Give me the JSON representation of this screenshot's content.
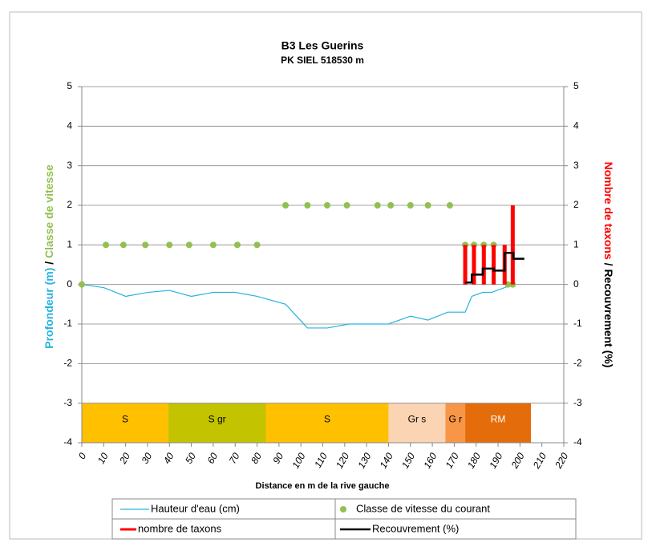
{
  "chart_data": {
    "type": "combo",
    "title": "B3 Les Guerins",
    "subtitle": "PK SIEL 518530 m",
    "xlabel": "Distance en m de la rive gauche",
    "ylabel": [
      {
        "text": "Profondeur (m)",
        "color": "#27b3e0"
      },
      {
        "text": "/",
        "color": "#000000"
      },
      {
        "text": "Classe de vitesse",
        "color": "#92c050"
      }
    ],
    "y2label": [
      {
        "text": "Nombre de taxons",
        "color": "#ff0000"
      },
      {
        "text": "/",
        "color": "#000000"
      },
      {
        "text": "Recouvrement (%)",
        "color": "#000000"
      }
    ],
    "xlim": [
      0,
      220
    ],
    "xticks": [
      0,
      10,
      20,
      30,
      40,
      50,
      60,
      70,
      80,
      90,
      100,
      110,
      120,
      130,
      140,
      150,
      160,
      170,
      180,
      190,
      200,
      210,
      220
    ],
    "ylim": [
      -4,
      5
    ],
    "yticks": [
      -4,
      -3,
      -2,
      -1,
      0,
      1,
      2,
      3,
      4,
      5
    ],
    "y2lim": [
      -4,
      5
    ],
    "y2ticks": [
      -4,
      -3,
      -2,
      -1,
      0,
      1,
      2,
      3,
      4,
      5
    ],
    "grid": true,
    "series": [
      {
        "name": "Hauteur d'eau (cm)",
        "type": "line",
        "color": "#27b3e0",
        "x": [
          0,
          10,
          20,
          30,
          40,
          50,
          60,
          70,
          80,
          93,
          103,
          112,
          122,
          131,
          140,
          150,
          158,
          167,
          175,
          178,
          183,
          187,
          192,
          197
        ],
        "values": [
          0,
          -0.08,
          -0.3,
          -0.2,
          -0.15,
          -0.3,
          -0.2,
          -0.2,
          -0.3,
          -0.5,
          -1.1,
          -1.1,
          -1.0,
          -1.0,
          -1.0,
          -0.8,
          -0.9,
          -0.7,
          -0.7,
          -0.3,
          -0.2,
          -0.2,
          -0.1,
          0
        ]
      },
      {
        "name": "Classe de vitesse du courant",
        "type": "scatter",
        "color": "#92c050",
        "x": [
          0,
          11,
          19,
          29,
          40,
          49,
          60,
          71,
          80,
          93,
          103,
          112,
          121,
          135,
          141,
          150,
          158,
          168,
          175,
          179,
          183.5,
          188,
          194.5,
          196.7
        ],
        "values": [
          0,
          1,
          1,
          1,
          1,
          1,
          1,
          1,
          1,
          2,
          2,
          2,
          2,
          2,
          2,
          2,
          2,
          2,
          1,
          1,
          1,
          1,
          0,
          0
        ]
      },
      {
        "name": "nombre de taxons",
        "type": "bar",
        "color": "#ff0000",
        "axis": "y2",
        "x": [
          175,
          179,
          183.5,
          188,
          193,
          196.7
        ],
        "values": [
          1,
          1,
          1,
          1,
          1,
          2
        ]
      },
      {
        "name": "Recouvrement (%)",
        "type": "step",
        "color": "#000000",
        "axis": "y2",
        "x": [
          175,
          178,
          183,
          188,
          193,
          197,
          202
        ],
        "values": [
          0.05,
          0.25,
          0.4,
          0.35,
          0.8,
          0.65,
          0.65
        ]
      }
    ],
    "substrate": {
      "ylim": [
        -4,
        -3
      ],
      "bands": [
        {
          "label": "S",
          "start": 0,
          "end": 39.5,
          "color": "#ffc000"
        },
        {
          "label": "S gr",
          "start": 39.5,
          "end": 84,
          "color": "#c3c300"
        },
        {
          "label": "S",
          "start": 84,
          "end": 140,
          "color": "#ffc000"
        },
        {
          "label": "Gr s",
          "start": 140,
          "end": 166,
          "color": "#fbd4b4"
        },
        {
          "label": "G r",
          "start": 166,
          "end": 175,
          "color": "#f79646"
        },
        {
          "label": "RM",
          "start": 175,
          "end": 205,
          "color": "#e46c0a"
        }
      ]
    }
  }
}
